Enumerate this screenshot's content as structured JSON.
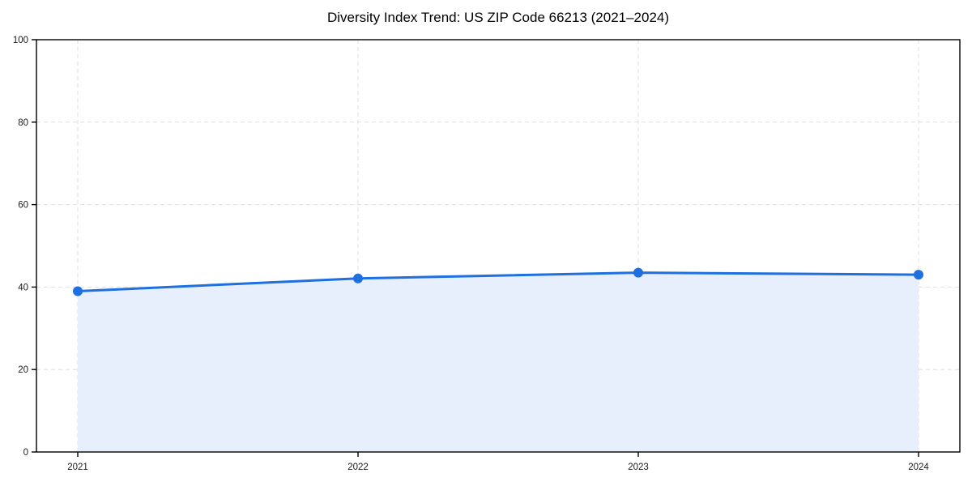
{
  "chart_data": {
    "type": "area",
    "title": "Diversity Index Trend: US ZIP Code 66213 (2021–2024)",
    "categories": [
      "2021",
      "2022",
      "2023",
      "2024"
    ],
    "values": [
      39.0,
      42.1,
      43.5,
      43.0
    ],
    "xlabel": "",
    "ylabel": "",
    "ylim": [
      0,
      100
    ],
    "yticks": [
      0,
      20,
      40,
      60,
      80,
      100
    ],
    "grid": "dashed-both-axes",
    "legend": "none",
    "colors": {
      "line": "#1e6fe0",
      "marker": "#1e6fe0",
      "fill": "#e7effc",
      "grid": "#dedede",
      "spine": "#000000",
      "tick_label": "#1a1a1a",
      "title": "#000000"
    }
  }
}
